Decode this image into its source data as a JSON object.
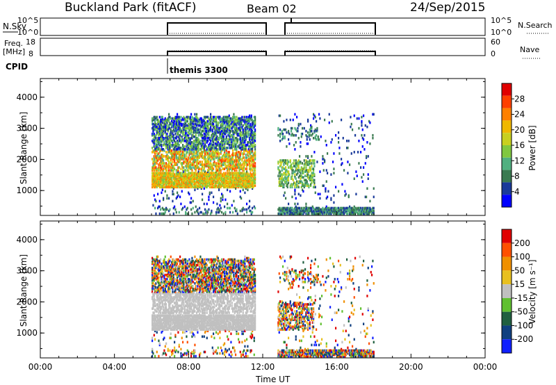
{
  "header": {
    "station": "Buckland Park (fitACF)",
    "beam": "Beam 02",
    "date": "24/Sep/2015"
  },
  "panels": {
    "nsky_label": "N.Sky",
    "nsky_tick_top": "10^5",
    "nsky_tick_bottom": "10^0",
    "nsearch_label": "N.Search",
    "freq_label_line1": "Freq.",
    "freq_label_line2": "[MHz]",
    "freq_tick_top": "18",
    "freq_tick_bottom": "8",
    "nave_label": "Nave",
    "nave_tick_top": "60",
    "nave_tick_bottom": "0",
    "cpid_label": "CPID",
    "cpid_value": "themis 3300"
  },
  "colors": {
    "power": [
      "#0000ff",
      "#1a3a9a",
      "#3a7a50",
      "#50b080",
      "#80c840",
      "#c8d020",
      "#f0b800",
      "#ff8000",
      "#ff4000",
      "#e00000"
    ],
    "velocity": [
      "#1020ff",
      "#104080",
      "#206040",
      "#60c030",
      "#c0c0c0",
      "#e8c020",
      "#f09000",
      "#ff5000",
      "#e00000"
    ]
  },
  "chart_data": [
    {
      "type": "heatmap",
      "name": "power",
      "ylabel": "Slant Range [km]",
      "xlabel": "",
      "x_ticks": [
        "00:00",
        "04:00",
        "08:00",
        "12:00",
        "16:00",
        "20:00",
        "00:00"
      ],
      "y_ticks": [
        "1000",
        "2000",
        "3000",
        "4000"
      ],
      "ylim": [
        200,
        4600
      ],
      "colorbar_label": "Power [dB]",
      "colorbar_ticks": [
        "4",
        "8",
        "12",
        "16",
        "20",
        "24",
        "28"
      ],
      "data_gaps_hours": [
        [
          11.6,
          12.8
        ]
      ],
      "data_coverage_hours": [
        [
          6.0,
          18.0
        ]
      ]
    },
    {
      "type": "heatmap",
      "name": "velocity",
      "ylabel": "Slant Range [km]",
      "xlabel": "Time UT",
      "x_ticks": [
        "00:00",
        "04:00",
        "08:00",
        "12:00",
        "16:00",
        "20:00",
        "00:00"
      ],
      "y_ticks": [
        "1000",
        "2000",
        "3000",
        "4000"
      ],
      "ylim": [
        200,
        4600
      ],
      "colorbar_label": "Velocity [m s⁻¹]",
      "colorbar_ticks": [
        "200",
        "100",
        "50",
        "15",
        "-15",
        "-50",
        "-100",
        "-200"
      ],
      "data_gaps_hours": [
        [
          11.6,
          12.8
        ]
      ],
      "data_coverage_hours": [
        [
          6.0,
          18.0
        ]
      ]
    }
  ]
}
